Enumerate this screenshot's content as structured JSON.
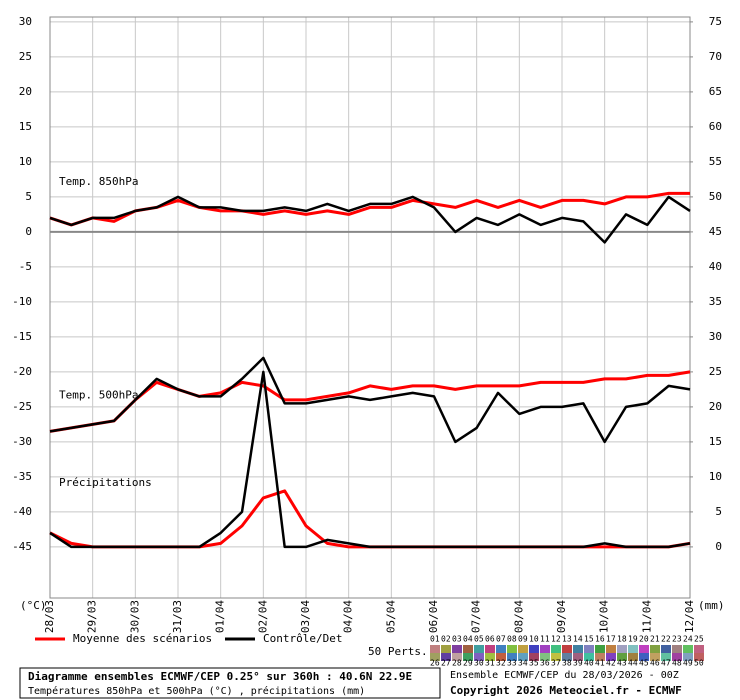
{
  "chart_data": {
    "type": "line",
    "x": [
      0,
      12,
      24,
      36,
      48,
      60,
      72,
      84,
      96,
      108,
      120,
      132,
      144,
      156,
      168,
      180,
      192,
      204,
      216,
      228,
      240,
      252,
      264,
      276,
      288,
      300,
      312,
      324,
      336,
      348,
      360
    ],
    "xlim": [
      0,
      360
    ],
    "xticks": [
      {
        "value": 0,
        "label": "28/03"
      },
      {
        "value": 24,
        "label": "29/03"
      },
      {
        "value": 48,
        "label": "30/03"
      },
      {
        "value": 72,
        "label": "31/03"
      },
      {
        "value": 96,
        "label": "01/04"
      },
      {
        "value": 120,
        "label": "02/04"
      },
      {
        "value": 144,
        "label": "03/04"
      },
      {
        "value": 168,
        "label": "04/04"
      },
      {
        "value": 192,
        "label": "05/04"
      },
      {
        "value": 216,
        "label": "06/04"
      },
      {
        "value": 240,
        "label": "07/04"
      },
      {
        "value": 264,
        "label": "08/04"
      },
      {
        "value": 288,
        "label": "09/04"
      },
      {
        "value": 312,
        "label": "10/04"
      },
      {
        "value": 336,
        "label": "11/04"
      },
      {
        "value": 360,
        "label": "12/04"
      }
    ],
    "ylim": [
      -52.3,
      30.7
    ],
    "yticks": [
      -45,
      -40,
      -35,
      -30,
      -25,
      -20,
      -15,
      -10,
      -5,
      0,
      5,
      10,
      15,
      20,
      25,
      30
    ],
    "y2lim": [
      -7.3,
      75.7
    ],
    "y2ticks": [
      0,
      5,
      10,
      15,
      20,
      25,
      30,
      35,
      40,
      45,
      50,
      55,
      60,
      65,
      70,
      75
    ],
    "y_label": "(°C)",
    "y2_label": "(mm)",
    "grid": true,
    "mean": {
      "name": "Moyenne des scénarios",
      "color": "#ff0000"
    },
    "control": {
      "name": "Contrôle/Det",
      "color": "#000000"
    },
    "panels": [
      {
        "label": "Temp. 850hPa",
        "axis": "y",
        "mean": [
          2,
          1,
          2,
          1.5,
          3,
          3.5,
          4.5,
          3.5,
          3,
          3,
          2.5,
          3,
          2.5,
          3,
          2.5,
          3.5,
          3.5,
          4.5,
          4,
          3.5,
          4.5,
          3.5,
          4.5,
          3.5,
          4.5,
          4.5,
          4,
          5,
          5,
          5.5,
          5.5
        ],
        "control": [
          2,
          1,
          2,
          2,
          3,
          3.5,
          5,
          3.5,
          3.5,
          3,
          3,
          3.5,
          3,
          4,
          3,
          4,
          4,
          5,
          3.5,
          0,
          2,
          1,
          2.5,
          1,
          2,
          1.5,
          -1.5,
          2.5,
          1,
          5,
          3
        ]
      },
      {
        "label": "Temp. 500hPa",
        "axis": "y",
        "mean": [
          -28.5,
          -28,
          -27.5,
          -27,
          -24,
          -21.5,
          -22.5,
          -23.5,
          -23,
          -21.5,
          -22,
          -24,
          -24,
          -23.5,
          -23,
          -22,
          -22.5,
          -22,
          -22,
          -22.5,
          -22,
          -22,
          -22,
          -21.5,
          -21.5,
          -21.5,
          -21,
          -21,
          -20.5,
          -20.5,
          -20
        ],
        "control": [
          -28.5,
          -28,
          -27.5,
          -27,
          -24,
          -21,
          -22.5,
          -23.5,
          -23.5,
          -21,
          -18,
          -24.5,
          -24.5,
          -24,
          -23.5,
          -24,
          -23.5,
          -23,
          -23.5,
          -30,
          -28,
          -23,
          -26,
          -25,
          -25,
          -24.5,
          -30,
          -25,
          -24.5,
          -22,
          -22.5
        ]
      },
      {
        "label": "Précipitations",
        "axis": "y2",
        "mean": [
          2,
          0.5,
          0,
          0,
          0,
          0,
          0,
          0,
          0.5,
          3,
          7,
          8,
          3,
          0.5,
          0,
          0,
          0,
          0,
          0,
          0,
          0,
          0,
          0,
          0,
          0,
          0,
          0,
          0,
          0,
          0,
          0.5
        ],
        "control": [
          2,
          0,
          0,
          0,
          0,
          0,
          0,
          0,
          2,
          5,
          25,
          0,
          0,
          1,
          0.5,
          0,
          0,
          0,
          0,
          0,
          0,
          0,
          0,
          0,
          0,
          0,
          0.5,
          0,
          0,
          0,
          0.5
        ]
      }
    ],
    "members": {
      "label": "50 Perts.",
      "names": [
        "01",
        "02",
        "03",
        "04",
        "05",
        "06",
        "07",
        "08",
        "09",
        "10",
        "11",
        "12",
        "13",
        "14",
        "15",
        "16",
        "17",
        "18",
        "19",
        "20",
        "21",
        "22",
        "23",
        "24",
        "25",
        "26",
        "27",
        "28",
        "29",
        "30",
        "31",
        "32",
        "33",
        "34",
        "35",
        "36",
        "37",
        "38",
        "39",
        "40",
        "41",
        "42",
        "43",
        "44",
        "45",
        "46",
        "47",
        "48",
        "49",
        "50"
      ],
      "colors": [
        "#c08080",
        "#a0a040",
        "#8040a0",
        "#a06040",
        "#40a0a0",
        "#c04080",
        "#4080c0",
        "#80c040",
        "#c0a040",
        "#4040c0",
        "#a040c0",
        "#40c080",
        "#c04040",
        "#4080a0",
        "#8080c0",
        "#40a040",
        "#c08040",
        "#a0a0c0",
        "#80c0c0",
        "#c040c0",
        "#80a040",
        "#4060a0",
        "#a08080",
        "#60c060",
        "#c06080",
        "#a0a060",
        "#6040a0",
        "#c0a0a0",
        "#40a060",
        "#8060c0",
        "#a0c040",
        "#c06040",
        "#4080c0",
        "#60a0c0",
        "#a04060",
        "#80c080",
        "#c0c040",
        "#6080a0",
        "#a06080",
        "#40c0a0",
        "#c08060",
        "#8040c0",
        "#60a040",
        "#a08040",
        "#4060c0",
        "#c0a060",
        "#60c0a0",
        "#a040a0",
        "#80a0c0",
        "#c06060"
      ]
    },
    "info": {
      "title": "Diagramme ensembles ECMWF/CEP 0.25° sur 360h : 40.6N 22.9E",
      "subtitle": "Températures 850hPa et 500hPa (°C) , précipitations (mm)",
      "run": "Ensemble ECMWF/CEP du 28/03/2026 - 00Z",
      "copyright": "Copyright 2026 Meteociel.fr - ECMWF"
    }
  }
}
